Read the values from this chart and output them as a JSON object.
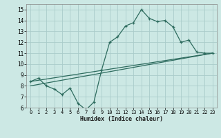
{
  "xlabel": "Humidex (Indice chaleur)",
  "bg_color": "#cce8e4",
  "grid_color": "#aaccca",
  "line_color": "#2d6b5e",
  "xlim": [
    -0.5,
    23.5
  ],
  "ylim": [
    6,
    15.5
  ],
  "xticks": [
    0,
    1,
    2,
    3,
    4,
    5,
    6,
    7,
    8,
    9,
    10,
    11,
    12,
    13,
    14,
    15,
    16,
    17,
    18,
    19,
    20,
    21,
    22,
    23
  ],
  "yticks": [
    6,
    7,
    8,
    9,
    10,
    11,
    12,
    13,
    14,
    15
  ],
  "line1_x": [
    0,
    1,
    2,
    3,
    4,
    5,
    6,
    7,
    8,
    9,
    10,
    11,
    12,
    13,
    14,
    15,
    16,
    17,
    18,
    19,
    20,
    21,
    22,
    23
  ],
  "line1_y": [
    8.4,
    8.7,
    8.0,
    7.7,
    7.2,
    7.8,
    6.4,
    5.8,
    6.5,
    9.5,
    12.0,
    12.5,
    13.5,
    13.8,
    15.0,
    14.2,
    13.9,
    14.0,
    13.4,
    12.0,
    12.2,
    11.1,
    11.0,
    11.0
  ],
  "line2_x": [
    0,
    23
  ],
  "line2_y": [
    8.4,
    11.0
  ],
  "line3_x": [
    0,
    23
  ],
  "line3_y": [
    8.0,
    11.0
  ]
}
